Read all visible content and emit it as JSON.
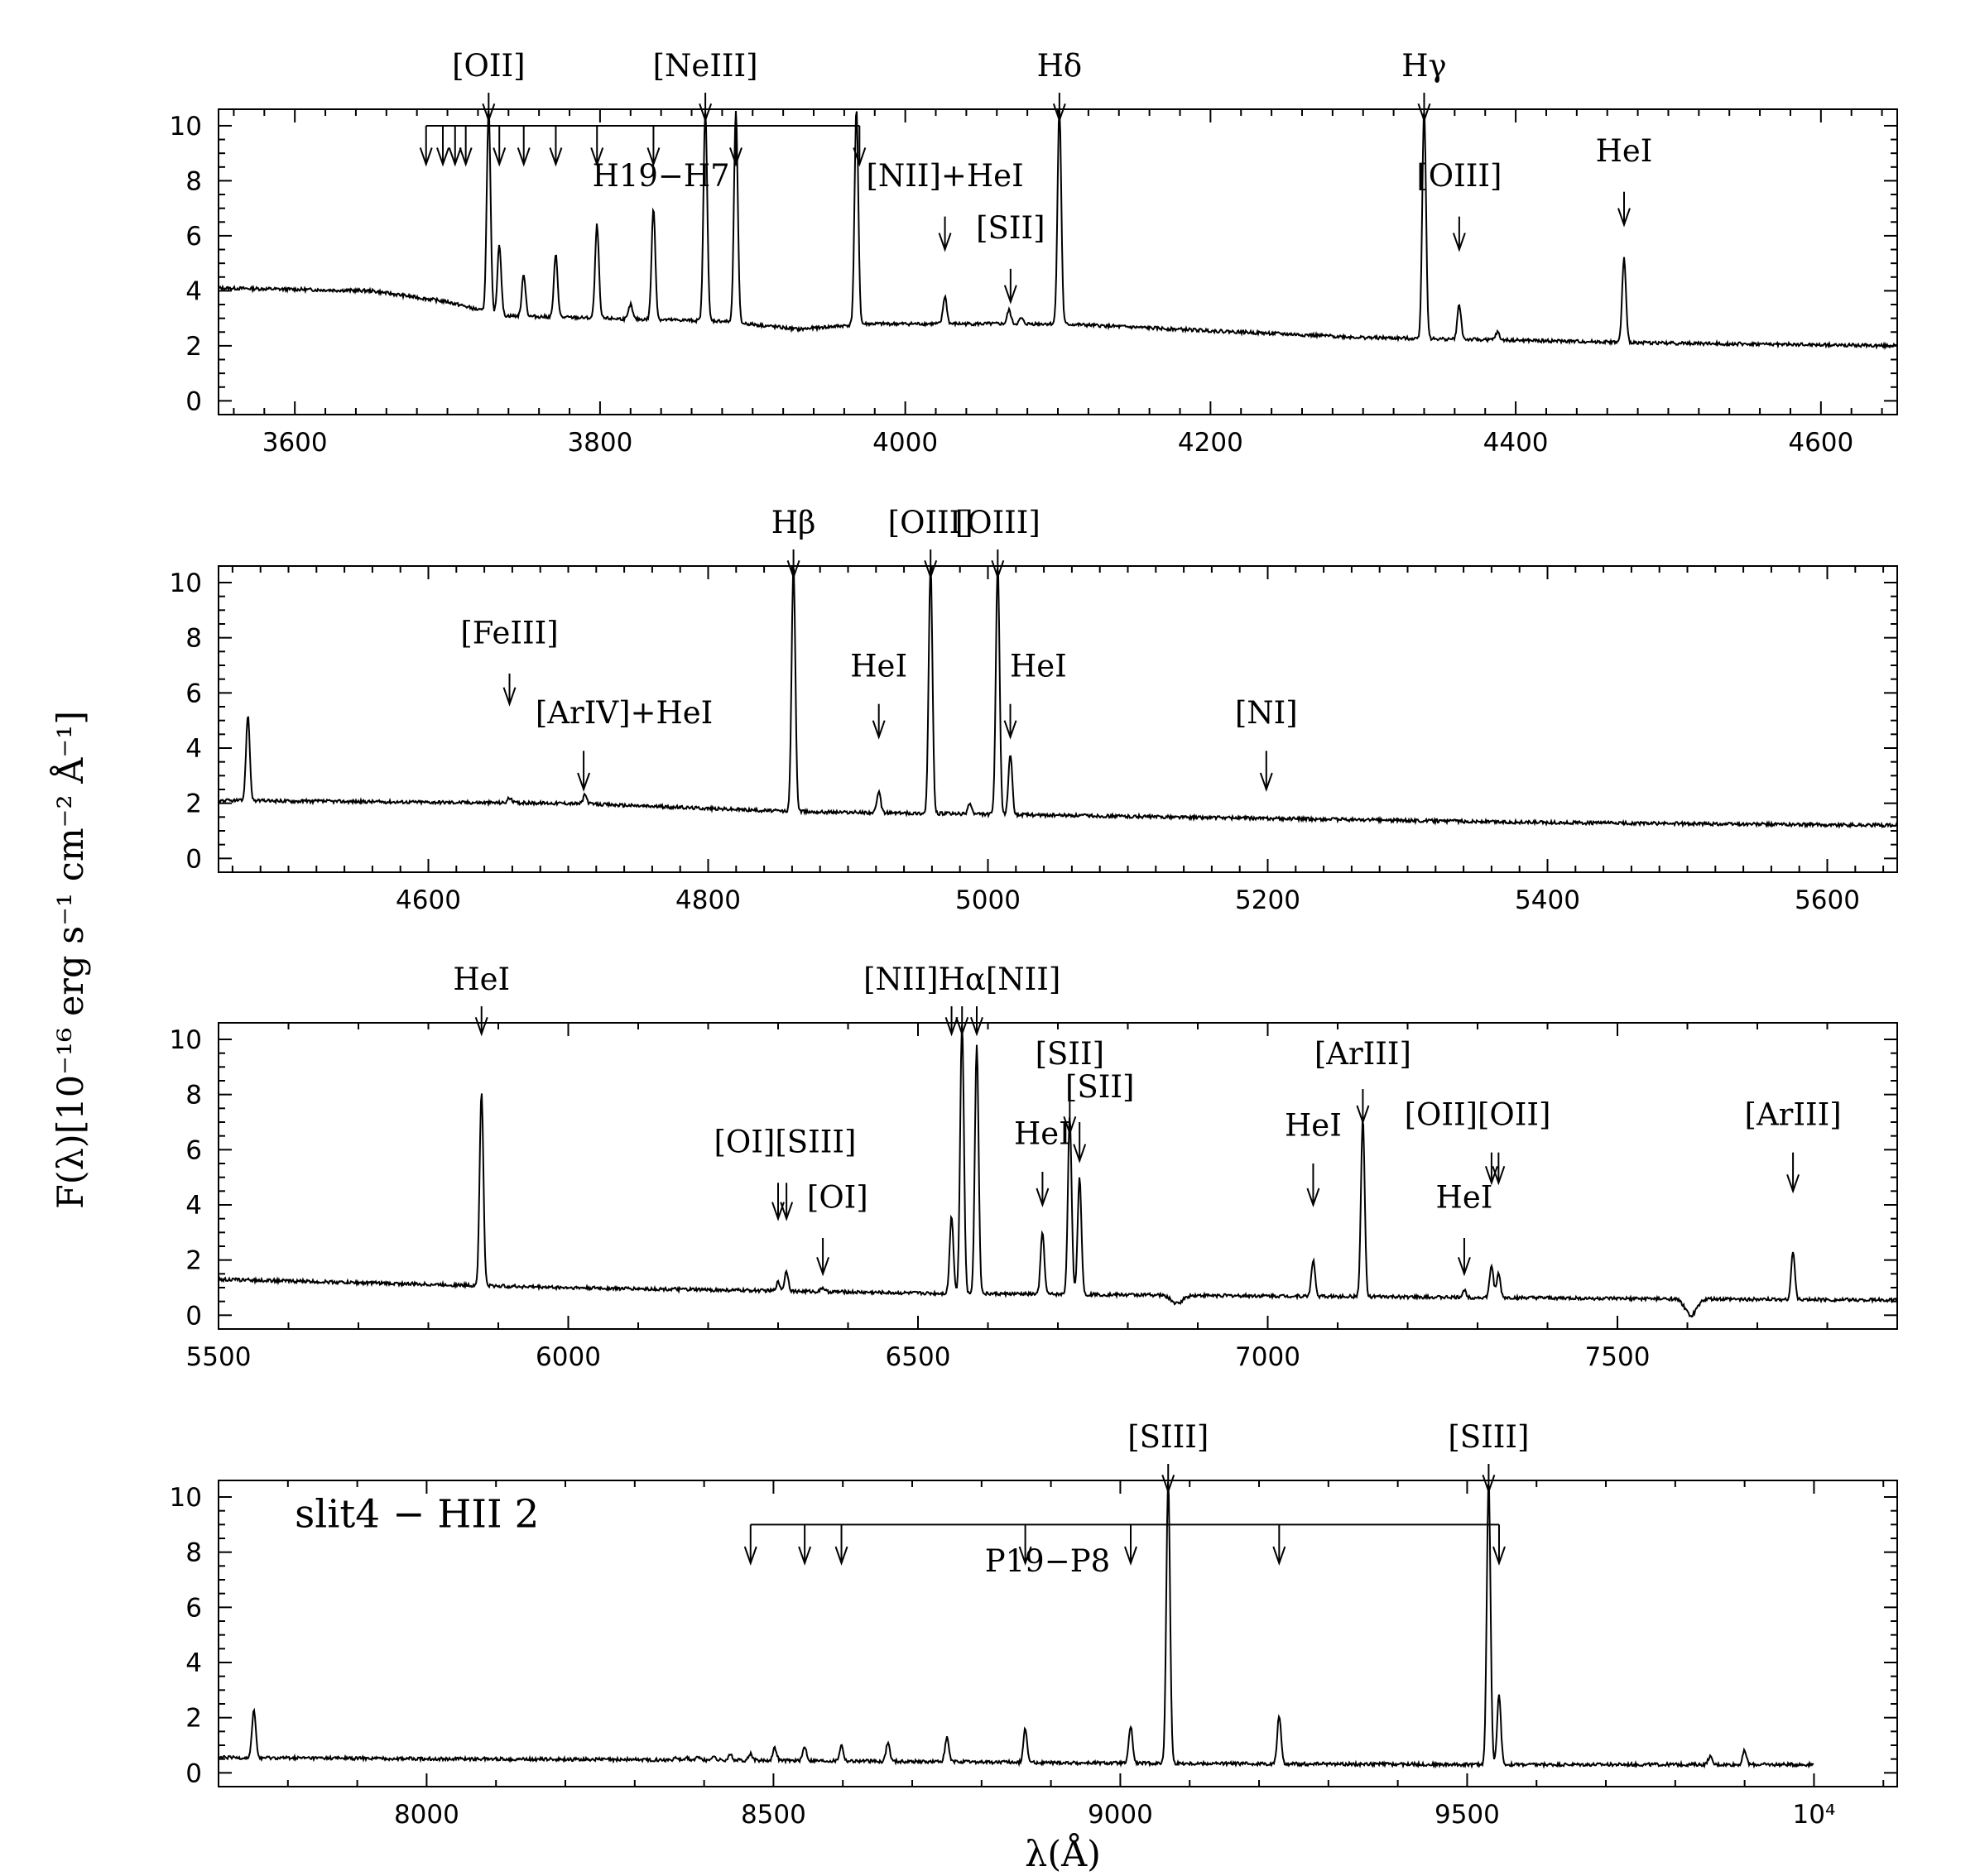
{
  "y_axis_label": "F(λ)[10⁻¹⁶ erg s⁻¹ cm⁻² Å⁻¹]",
  "x_axis_label": "λ(Å)",
  "chart_data": [
    {
      "id": "panel1",
      "type": "line",
      "xlim": [
        3550,
        4650
      ],
      "ylim": [
        -0.5,
        10.6
      ],
      "x_ticks": [
        3600,
        3800,
        4000,
        4200,
        4400,
        4600
      ],
      "x_tick_labels": [
        "3600",
        "3800",
        "4000",
        "4200",
        "4400",
        "4600"
      ],
      "y_ticks": [
        0,
        2,
        4,
        6,
        8,
        10
      ],
      "y_tick_labels": [
        "0",
        "2",
        "4",
        "6",
        "8",
        "10"
      ],
      "grid": false,
      "continuum": [
        [
          3550,
          4.1
        ],
        [
          3650,
          4.0
        ],
        [
          3700,
          3.6
        ],
        [
          3735,
          3.1
        ],
        [
          3800,
          3.0
        ],
        [
          3880,
          2.9
        ],
        [
          3930,
          2.6
        ],
        [
          3975,
          2.8
        ],
        [
          4050,
          2.8
        ],
        [
          4100,
          2.8
        ],
        [
          4300,
          2.3
        ],
        [
          4500,
          2.1
        ],
        [
          4650,
          2.0
        ]
      ],
      "lines": [
        {
          "x": 3727,
          "peak": 10.6
        },
        {
          "x": 3734,
          "peak": 5.7
        },
        {
          "x": 3750,
          "peak": 4.6
        },
        {
          "x": 3771,
          "peak": 5.3
        },
        {
          "x": 3798,
          "peak": 6.4
        },
        {
          "x": 3820,
          "peak": 3.5
        },
        {
          "x": 3835,
          "peak": 7.0
        },
        {
          "x": 3869,
          "peak": 10.6
        },
        {
          "x": 3889,
          "peak": 10.6
        },
        {
          "x": 3968,
          "peak": 10.6
        },
        {
          "x": 4026,
          "peak": 3.8
        },
        {
          "x": 4068,
          "peak": 3.3
        },
        {
          "x": 4076,
          "peak": 3.0
        },
        {
          "x": 4101,
          "peak": 10.6
        },
        {
          "x": 4340,
          "peak": 10.6
        },
        {
          "x": 4363,
          "peak": 3.5
        },
        {
          "x": 4388,
          "peak": 2.5
        },
        {
          "x": 4471,
          "peak": 5.2
        }
      ],
      "annotations": [
        {
          "text": "[OII]",
          "x": 3727,
          "label_y": 11.8,
          "arrow_top": 11.2,
          "arrow_bottom": 10.2
        },
        {
          "text": "[NeIII]",
          "x": 3869,
          "label_y": 11.8,
          "arrow_top": 11.2,
          "arrow_bottom": 10.2
        },
        {
          "text": "Hδ",
          "x": 4101,
          "label_y": 11.8,
          "arrow_top": 11.2,
          "arrow_bottom": 10.2
        },
        {
          "text": "Hγ",
          "x": 4340,
          "label_y": 11.8,
          "arrow_top": 11.2,
          "arrow_bottom": 10.2
        },
        {
          "text": "[NII]+HeI",
          "x": 4026,
          "label_y": 7.8,
          "arrow_top": 6.7,
          "arrow_bottom": 5.5
        },
        {
          "text": "[SII]",
          "x": 4069,
          "label_y": 5.9,
          "arrow_top": 4.8,
          "arrow_bottom": 3.6
        },
        {
          "text": "[OIII]",
          "x": 4363,
          "label_y": 7.8,
          "arrow_top": 6.7,
          "arrow_bottom": 5.5
        },
        {
          "text": "HeI",
          "x": 4471,
          "label_y": 8.7,
          "arrow_top": 7.6,
          "arrow_bottom": 6.4
        }
      ],
      "series_comb": {
        "text": "H19−H7",
        "label_x": 3840,
        "label_y": 7.8,
        "bar_y": 10.0,
        "arrow_bottom": 8.6,
        "x": [
          3686,
          3697,
          3705,
          3712,
          3734,
          3750,
          3771,
          3798,
          3835,
          3889,
          3970
        ]
      }
    },
    {
      "id": "panel2",
      "type": "line",
      "xlim": [
        4450,
        5650
      ],
      "ylim": [
        -0.5,
        10.6
      ],
      "x_ticks": [
        4600,
        4800,
        5000,
        5200,
        5400,
        5600
      ],
      "x_tick_labels": [
        "4600",
        "4800",
        "5000",
        "5200",
        "5400",
        "5600"
      ],
      "y_ticks": [
        0,
        2,
        4,
        6,
        8,
        10
      ],
      "y_tick_labels": [
        "0",
        "2",
        "4",
        "6",
        "8",
        "10"
      ],
      "grid": false,
      "continuum": [
        [
          4450,
          2.1
        ],
        [
          4700,
          2.0
        ],
        [
          4860,
          1.7
        ],
        [
          5000,
          1.6
        ],
        [
          5200,
          1.45
        ],
        [
          5400,
          1.3
        ],
        [
          5650,
          1.2
        ]
      ],
      "lines": [
        {
          "x": 4471,
          "peak": 5.2
        },
        {
          "x": 4658,
          "peak": 2.2
        },
        {
          "x": 4712,
          "peak": 2.3
        },
        {
          "x": 4861,
          "peak": 10.6
        },
        {
          "x": 4922,
          "peak": 2.4
        },
        {
          "x": 4959,
          "peak": 10.6
        },
        {
          "x": 4987,
          "peak": 2.0
        },
        {
          "x": 5007,
          "peak": 10.6
        },
        {
          "x": 5016,
          "peak": 3.8
        }
      ],
      "annotations": [
        {
          "text": "Hβ",
          "x": 4861,
          "label_y": 11.8,
          "arrow_top": 11.2,
          "arrow_bottom": 10.2
        },
        {
          "text": "[OIII]",
          "x": 4959,
          "label_y": 11.8,
          "arrow_top": 11.2,
          "arrow_bottom": 10.2
        },
        {
          "text": "[OIII]",
          "x": 5007,
          "label_y": 11.8,
          "arrow_top": 11.2,
          "arrow_bottom": 10.2
        },
        {
          "text": "[FeIII]",
          "x": 4658,
          "label_y": 7.8,
          "arrow_top": 6.7,
          "arrow_bottom": 5.6
        },
        {
          "text": "[ArIV]+HeI",
          "x": 4740,
          "arrow_x": 4711,
          "label_y": 4.9,
          "arrow_top": 3.9,
          "arrow_bottom": 2.5
        },
        {
          "text": "HeI",
          "x": 4922,
          "label_y": 6.6,
          "arrow_top": 5.6,
          "arrow_bottom": 4.4
        },
        {
          "text": "HeI",
          "x": 5036,
          "arrow_x": 5016,
          "label_y": 6.6,
          "arrow_top": 5.6,
          "arrow_bottom": 4.4
        },
        {
          "text": "[NI]",
          "x": 5199,
          "label_y": 4.9,
          "arrow_top": 3.9,
          "arrow_bottom": 2.5
        }
      ]
    },
    {
      "id": "panel3",
      "type": "line",
      "xlim": [
        5500,
        7900
      ],
      "ylim": [
        -0.5,
        10.6
      ],
      "x_ticks": [
        5500,
        6000,
        6500,
        7000,
        7500
      ],
      "x_tick_labels": [
        "5500",
        "6000",
        "6500",
        "7000",
        "7500"
      ],
      "y_ticks": [
        0,
        2,
        4,
        6,
        8,
        10
      ],
      "y_tick_labels": [
        "0",
        "2",
        "4",
        "6",
        "8",
        "10"
      ],
      "grid": false,
      "continuum": [
        [
          5500,
          1.3
        ],
        [
          6000,
          1.0
        ],
        [
          6500,
          0.8
        ],
        [
          7000,
          0.7
        ],
        [
          7500,
          0.6
        ],
        [
          7900,
          0.55
        ]
      ],
      "lines": [
        {
          "x": 5876,
          "peak": 8.1
        },
        {
          "x": 6300,
          "peak": 1.2
        },
        {
          "x": 6312,
          "peak": 1.6
        },
        {
          "x": 6364,
          "peak": 1.0
        },
        {
          "x": 6548,
          "peak": 3.6
        },
        {
          "x": 6563,
          "peak": 10.6
        },
        {
          "x": 6584,
          "peak": 9.8
        },
        {
          "x": 6678,
          "peak": 3.0
        },
        {
          "x": 6717,
          "peak": 7.2
        },
        {
          "x": 6731,
          "peak": 5.0
        },
        {
          "x": 7065,
          "peak": 2.0
        },
        {
          "x": 7136,
          "peak": 7.1
        },
        {
          "x": 7281,
          "peak": 0.9
        },
        {
          "x": 7320,
          "peak": 1.8
        },
        {
          "x": 7330,
          "peak": 1.5
        },
        {
          "x": 7751,
          "peak": 2.3
        }
      ],
      "absorptions": [
        {
          "x": 6870,
          "depth": 0.3
        },
        {
          "x": 7605,
          "depth": 0.6
        }
      ],
      "annotations": [
        {
          "text": "HeI",
          "x": 5876,
          "label_y": 11.8,
          "arrow_top": 11.2,
          "arrow_bottom": 10.2
        },
        {
          "text": "[NII]Hα[NII]",
          "x": 6563,
          "label_y": 11.8,
          "arrows": [
            6548,
            6563,
            6584
          ],
          "arrow_top": 11.2,
          "arrow_bottom": 10.2
        },
        {
          "text": "[SII]",
          "x": 6717,
          "label_y": 9.1,
          "arrow_top": 8.2,
          "arrow_bottom": 6.6
        },
        {
          "text": "[SII]",
          "x": 6760,
          "arrow_x": 6731,
          "label_y": 7.9,
          "arrow_top": 7.0,
          "arrow_bottom": 5.6
        },
        {
          "text": "[ArIII]",
          "x": 7136,
          "label_y": 9.1,
          "arrow_top": 8.2,
          "arrow_bottom": 7.0
        },
        {
          "text": "HeI",
          "x": 6678,
          "label_y": 6.2,
          "arrow_top": 5.2,
          "arrow_bottom": 4.0
        },
        {
          "text": "HeI",
          "x": 7065,
          "label_y": 6.5,
          "arrow_top": 5.5,
          "arrow_bottom": 4.0
        },
        {
          "text": "[OI][SIII]",
          "x": 6310,
          "label_y": 5.9,
          "arrows": [
            6300,
            6312
          ],
          "arrow_top": 4.8,
          "arrow_bottom": 3.5
        },
        {
          "text": "[OI]",
          "x": 6385,
          "arrow_x": 6364,
          "label_y": 3.9,
          "arrow_top": 2.8,
          "arrow_bottom": 1.5
        },
        {
          "text": "[OII][OII]",
          "x": 7300,
          "label_y": 6.9,
          "arrows": [
            7320,
            7330
          ],
          "arrow_top": 5.9,
          "arrow_bottom": 4.8
        },
        {
          "text": "HeI",
          "x": 7281,
          "label_y": 3.9,
          "arrow_top": 2.8,
          "arrow_bottom": 1.5
        },
        {
          "text": "[ArIII]",
          "x": 7751,
          "label_y": 6.9,
          "arrow_top": 5.9,
          "arrow_bottom": 4.5
        }
      ]
    },
    {
      "id": "panel4",
      "type": "line",
      "xlim": [
        7700,
        10120
      ],
      "ylim": [
        -0.5,
        10.6
      ],
      "x_ticks": [
        8000,
        8500,
        9000,
        9500,
        10000
      ],
      "x_tick_labels": [
        "8000",
        "8500",
        "9000",
        "9500",
        "10⁴"
      ],
      "y_ticks": [
        0,
        2,
        4,
        6,
        8,
        10
      ],
      "y_tick_labels": [
        "0",
        "2",
        "4",
        "6",
        "8",
        "10"
      ],
      "grid": false,
      "data_end": 10000,
      "continuum": [
        [
          7700,
          0.55
        ],
        [
          8500,
          0.45
        ],
        [
          9000,
          0.35
        ],
        [
          9500,
          0.3
        ],
        [
          10000,
          0.3
        ]
      ],
      "lines": [
        {
          "x": 7751,
          "peak": 2.3
        },
        {
          "x": 8359,
          "peak": 0.55
        },
        {
          "x": 8374,
          "peak": 0.55
        },
        {
          "x": 8392,
          "peak": 0.6
        },
        {
          "x": 8413,
          "peak": 0.6
        },
        {
          "x": 8438,
          "peak": 0.65
        },
        {
          "x": 8467,
          "peak": 0.7
        },
        {
          "x": 8502,
          "peak": 0.9
        },
        {
          "x": 8545,
          "peak": 0.95
        },
        {
          "x": 8598,
          "peak": 1.0
        },
        {
          "x": 8665,
          "peak": 1.1
        },
        {
          "x": 8750,
          "peak": 1.3
        },
        {
          "x": 8863,
          "peak": 1.6
        },
        {
          "x": 9015,
          "peak": 1.7
        },
        {
          "x": 9069,
          "peak": 10.6
        },
        {
          "x": 9229,
          "peak": 2.1
        },
        {
          "x": 9531,
          "peak": 10.6
        },
        {
          "x": 9546,
          "peak": 2.8
        },
        {
          "x": 9850,
          "peak": 0.6
        },
        {
          "x": 9900,
          "peak": 0.8
        }
      ],
      "annotations": [
        {
          "text": "[SIII]",
          "x": 9069,
          "label_y": 11.8,
          "arrow_top": 11.2,
          "arrow_bottom": 10.2
        },
        {
          "text": "[SIII]",
          "x": 9531,
          "label_y": 11.8,
          "arrow_top": 11.2,
          "arrow_bottom": 10.2
        }
      ],
      "series_comb": {
        "text": "P19−P8",
        "label_x": 8895,
        "label_y": 7.3,
        "bar_y": 9.0,
        "arrow_bottom": 7.6,
        "x": [
          8467,
          8545,
          8598,
          8863,
          9015,
          9229,
          9546
        ]
      },
      "panel_label": {
        "text": "slit4 − HII 2",
        "x": 7810,
        "y": 8.9
      }
    }
  ]
}
